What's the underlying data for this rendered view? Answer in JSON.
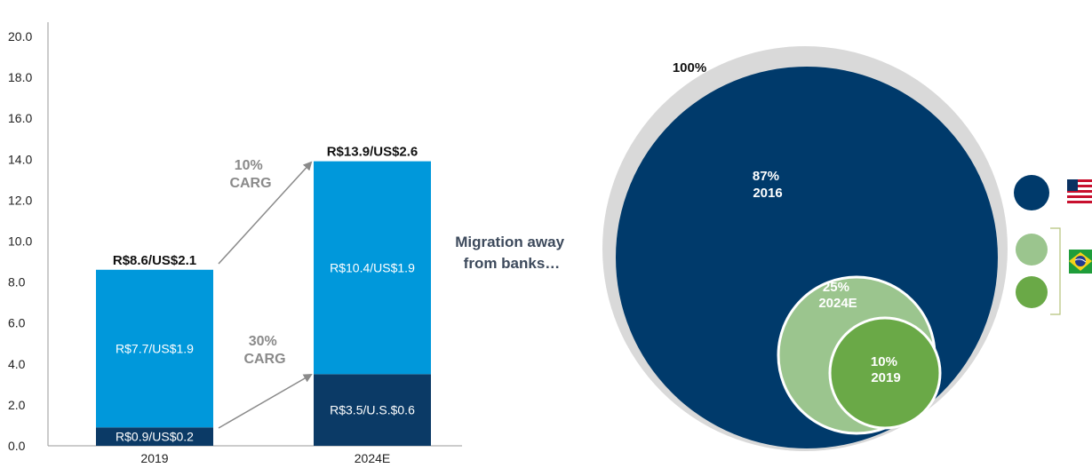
{
  "colors": {
    "bank": "#0b3a66",
    "other": "#0098db",
    "arrow": "#8a8a8a",
    "outer": "#d9d9d9",
    "us": "#003a6b",
    "br_2024": "#9bc58e",
    "br_2019": "#6aa947"
  },
  "chart_data": [
    {
      "type": "bar",
      "stacked": true,
      "categories": [
        "2019",
        "2024E"
      ],
      "ylim": [
        0,
        20
      ],
      "yticks": [
        "0.0",
        "2.0",
        "4.0",
        "6.0",
        "8.0",
        "10.0",
        "12.0",
        "14.0",
        "16.0",
        "18.0",
        "20.0"
      ],
      "grid": false,
      "series": [
        {
          "values": [
            0.9,
            3.5
          ],
          "labels": [
            "R$0.9/US$0.2",
            "R$3.5/U.S.$0.6"
          ]
        },
        {
          "values": [
            7.7,
            10.4
          ],
          "labels": [
            "R$7.7/US$1.9",
            "R$10.4/US$1.9"
          ]
        }
      ],
      "totals": [
        8.6,
        13.9
      ],
      "total_labels": [
        "R$8.6/US$2.1",
        "R$13.9/US$2.6"
      ],
      "annotations": [
        {
          "text": [
            "10%",
            "CARG"
          ],
          "from": "total of 2019",
          "to": "total of 2024E"
        },
        {
          "text": [
            "30%",
            "CARG"
          ],
          "from": "bottom segment of 2019",
          "to": "bottom segment of 2024E"
        }
      ]
    },
    {
      "type": "nested-circles",
      "caption": [
        "Migration away",
        "from banks…"
      ],
      "circles": [
        {
          "value": 100,
          "label": "100%"
        },
        {
          "value": 87,
          "labels": [
            "87%",
            "2016"
          ]
        },
        {
          "value": 25,
          "labels": [
            "25%",
            "2024E"
          ]
        },
        {
          "value": 10,
          "labels": [
            "10%",
            "2019"
          ]
        }
      ],
      "legend": [
        {
          "color": "#003a6b",
          "flag": "us-flag"
        },
        {
          "colors": [
            "#9bc58e",
            "#6aa947"
          ],
          "flag": "brazil-flag"
        }
      ]
    }
  ]
}
